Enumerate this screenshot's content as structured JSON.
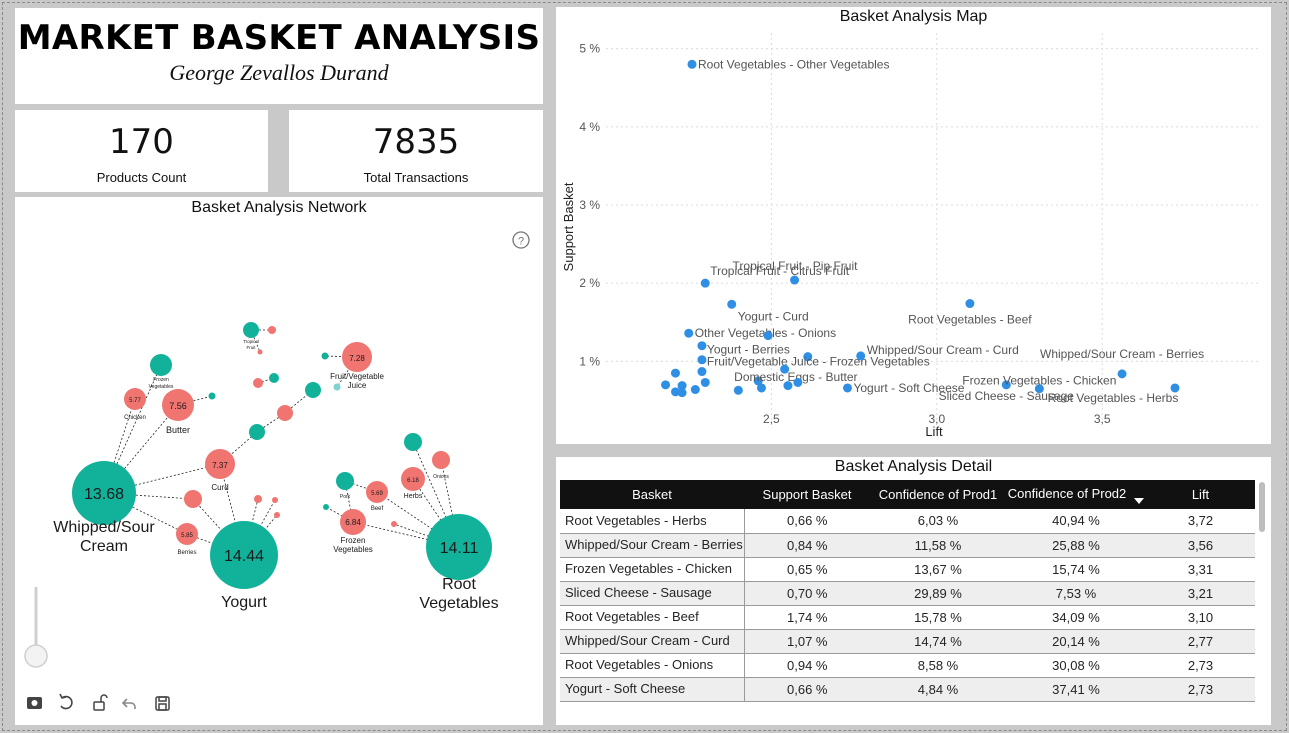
{
  "header": {
    "title": "MARKET BASKET ANALYSIS",
    "author": "George Zevallos Durand"
  },
  "kpis": [
    {
      "value": "170",
      "label": "Products Count"
    },
    {
      "value": "7835",
      "label": "Total Transactions"
    }
  ],
  "network": {
    "title": "Basket Analysis Network",
    "help_icon": "question-circle-icon",
    "big_nodes": {
      "whipped": "13.68",
      "yogurt": "14.44",
      "root": "14.11"
    },
    "big_labels": {
      "whipped_1": "Whipped/Sour",
      "whipped_2": "Cream",
      "yogurt": "Yogurt",
      "root_1": "Root",
      "root_2": "Vegetables"
    },
    "mid_nodes": {
      "butter": "7.56",
      "curd": "7.37",
      "juice": "7.28",
      "beef": "5.69",
      "frozen": "6.84",
      "herbs": "6.18",
      "chicken": "5.77",
      "berries": "5.85"
    },
    "mid_labels": {
      "butter": "Butter",
      "curd": "Curd",
      "juice_1": "Fruit/Vegetable",
      "juice_2": "Juice",
      "beef": "Beef",
      "frozen_1": "Frozen",
      "frozen_2": "Vegetables",
      "herbs": "Herbs",
      "onions": "Onions",
      "chicken": "Chicken",
      "berries": "Berries",
      "pork": "Pork",
      "frozen_small_1": "Frozen",
      "frozen_small_2": "Vegetables",
      "tropical_1": "Tropical",
      "tropical_2": "Fruit"
    },
    "toolbar": [
      "image-icon",
      "refresh-icon",
      "unlock-icon",
      "undo-icon",
      "save-icon"
    ]
  },
  "map": {
    "title": "Basket Analysis Map",
    "chart_data": {
      "type": "scatter",
      "title": "Basket Analysis Map",
      "xlabel": "Lift",
      "ylabel": "Support Basket",
      "xlim": [
        2.0,
        3.98
      ],
      "ylim": [
        0.25,
        5.2
      ],
      "x_ticks": [
        "2,5",
        "3,0",
        "3,5"
      ],
      "y_ticks": [
        "1 %",
        "2 %",
        "3 %",
        "4 %",
        "5 %"
      ],
      "grid": true,
      "color": "#2f8fe5",
      "points": [
        {
          "x": 2.26,
          "y": 4.8,
          "label": "Root Vegetables - Other Vegetables"
        },
        {
          "x": 2.3,
          "y": 2.0,
          "label": "Tropical Fruit - Citrus Fruit"
        },
        {
          "x": 2.57,
          "y": 2.04,
          "label": "Tropical Fruit - Pip Fruit"
        },
        {
          "x": 2.38,
          "y": 1.73,
          "label": "Yogurt - Curd"
        },
        {
          "x": 2.25,
          "y": 1.36,
          "label": "Other Vegetables - Onions"
        },
        {
          "x": 2.49,
          "y": 1.33,
          "label": ""
        },
        {
          "x": 2.29,
          "y": 1.2,
          "label": "Yogurt - Berries"
        },
        {
          "x": 2.61,
          "y": 1.06,
          "label": ""
        },
        {
          "x": 2.29,
          "y": 1.02,
          "label": ""
        },
        {
          "x": 2.29,
          "y": 0.87,
          "label": "Fruit/Vegetable Juice - Frozen Vegetables"
        },
        {
          "x": 2.54,
          "y": 0.9,
          "label": ""
        },
        {
          "x": 2.21,
          "y": 0.85,
          "label": ""
        },
        {
          "x": 2.3,
          "y": 0.73,
          "label": ""
        },
        {
          "x": 2.18,
          "y": 0.7,
          "label": ""
        },
        {
          "x": 2.23,
          "y": 0.69,
          "label": ""
        },
        {
          "x": 2.27,
          "y": 0.64,
          "label": ""
        },
        {
          "x": 2.21,
          "y": 0.61,
          "label": ""
        },
        {
          "x": 2.23,
          "y": 0.6,
          "label": ""
        },
        {
          "x": 2.4,
          "y": 0.63,
          "label": ""
        },
        {
          "x": 2.46,
          "y": 0.75,
          "label": "Domestic Eggs - Butter"
        },
        {
          "x": 2.47,
          "y": 0.66,
          "label": ""
        },
        {
          "x": 2.58,
          "y": 0.73,
          "label": ""
        },
        {
          "x": 2.55,
          "y": 0.69,
          "label": ""
        },
        {
          "x": 2.77,
          "y": 1.07,
          "label": "Whipped/Sour Cream - Curd"
        },
        {
          "x": 2.73,
          "y": 0.66,
          "label": "Yogurt - Soft Cheese"
        },
        {
          "x": 3.1,
          "y": 1.74,
          "label": "Root Vegetables - Beef"
        },
        {
          "x": 3.21,
          "y": 0.7,
          "label": "Sliced Cheese - Sausage"
        },
        {
          "x": 3.31,
          "y": 0.65,
          "label": "Frozen Vegetables - Chicken"
        },
        {
          "x": 3.56,
          "y": 0.84,
          "label": "Whipped/Sour Cream - Berries"
        },
        {
          "x": 3.72,
          "y": 0.66,
          "label": "Root Vegetables - Herbs"
        }
      ]
    }
  },
  "detail": {
    "title": "Basket Analysis Detail",
    "columns": [
      "Basket",
      "Support Basket",
      "Confidence of Prod1",
      "Confidence of Prod2",
      "Lift"
    ],
    "rows": [
      [
        "Root Vegetables - Herbs",
        "0,66 %",
        "6,03 %",
        "40,94 %",
        "3,72"
      ],
      [
        "Whipped/Sour Cream - Berries",
        "0,84 %",
        "11,58 %",
        "25,88 %",
        "3,56"
      ],
      [
        "Frozen Vegetables - Chicken",
        "0,65 %",
        "13,67 %",
        "15,74 %",
        "3,31"
      ],
      [
        "Sliced Cheese - Sausage",
        "0,70 %",
        "29,89 %",
        "7,53 %",
        "3,21"
      ],
      [
        "Root Vegetables - Beef",
        "1,74 %",
        "15,78 %",
        "34,09 %",
        "3,10"
      ],
      [
        "Whipped/Sour Cream - Curd",
        "1,07 %",
        "14,74 %",
        "20,14 %",
        "2,77"
      ],
      [
        "Root Vegetables - Onions",
        "0,94 %",
        "8,58 %",
        "30,08 %",
        "2,73"
      ],
      [
        "Yogurt - Soft Cheese",
        "0,66 %",
        "4,84 %",
        "37,41 %",
        "2,73"
      ]
    ]
  }
}
